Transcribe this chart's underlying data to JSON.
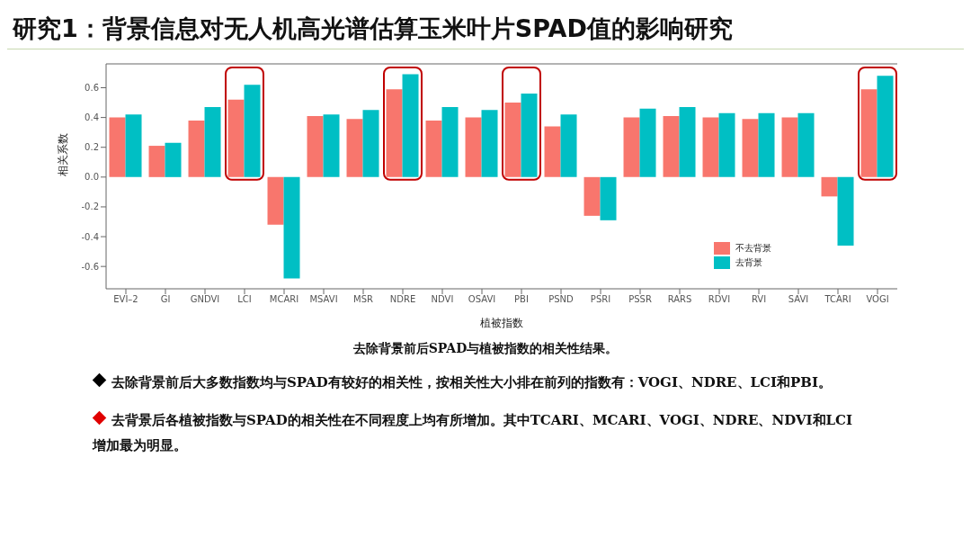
{
  "chart_data": {
    "type": "bar",
    "title": "研究1：背景信息对无人机高光谱估算玉米叶片SPAD值的影响研究",
    "xlabel": "植被指数",
    "ylabel": "相关系数",
    "categories": [
      "EVI–2",
      "GI",
      "GNDVI",
      "LCI",
      "MCARI",
      "MSAVI",
      "MSR",
      "NDRE",
      "NDVI",
      "OSAVI",
      "PBI",
      "PSND",
      "PSRI",
      "PSSR",
      "RARS",
      "RDVI",
      "RVI",
      "SAVI",
      "TCARI",
      "VOGI"
    ],
    "series": [
      {
        "name": "不去背景",
        "color": "#f8766d",
        "values": [
          0.4,
          0.21,
          0.38,
          0.52,
          -0.32,
          0.41,
          0.39,
          0.59,
          0.38,
          0.4,
          0.5,
          0.34,
          -0.26,
          0.4,
          0.41,
          0.4,
          0.39,
          0.4,
          -0.13,
          0.59
        ]
      },
      {
        "name": "去背景",
        "color": "#00bfc4",
        "values": [
          0.42,
          0.23,
          0.47,
          0.62,
          -0.68,
          0.42,
          0.45,
          0.69,
          0.47,
          0.45,
          0.56,
          0.42,
          -0.29,
          0.46,
          0.47,
          0.43,
          0.43,
          0.43,
          -0.46,
          0.68
        ]
      }
    ],
    "ylim": [
      -0.75,
      0.76
    ],
    "yticks": [
      -0.6,
      -0.4,
      -0.2,
      {
        "value": 0,
        "label": "0.0"
      },
      0.2,
      0.4,
      0.6
    ],
    "grid": false,
    "legend": "bottom right",
    "annotations": [
      "去除背景前后SPAD与植被指数的相关性结果。",
      "去除背景前后大多数指数均与SPAD有较好的相关性，按相关性大小排在前列的指数有：VOGI、NDRE、LCI和PBI。",
      "去背景后各植被指数与SPAD的相关性在不同程度上均有所增加。其中TCARI、MCARI、VOGI、NDRE、NDVI和LCI增加最为明显。"
    ]
  }
}
